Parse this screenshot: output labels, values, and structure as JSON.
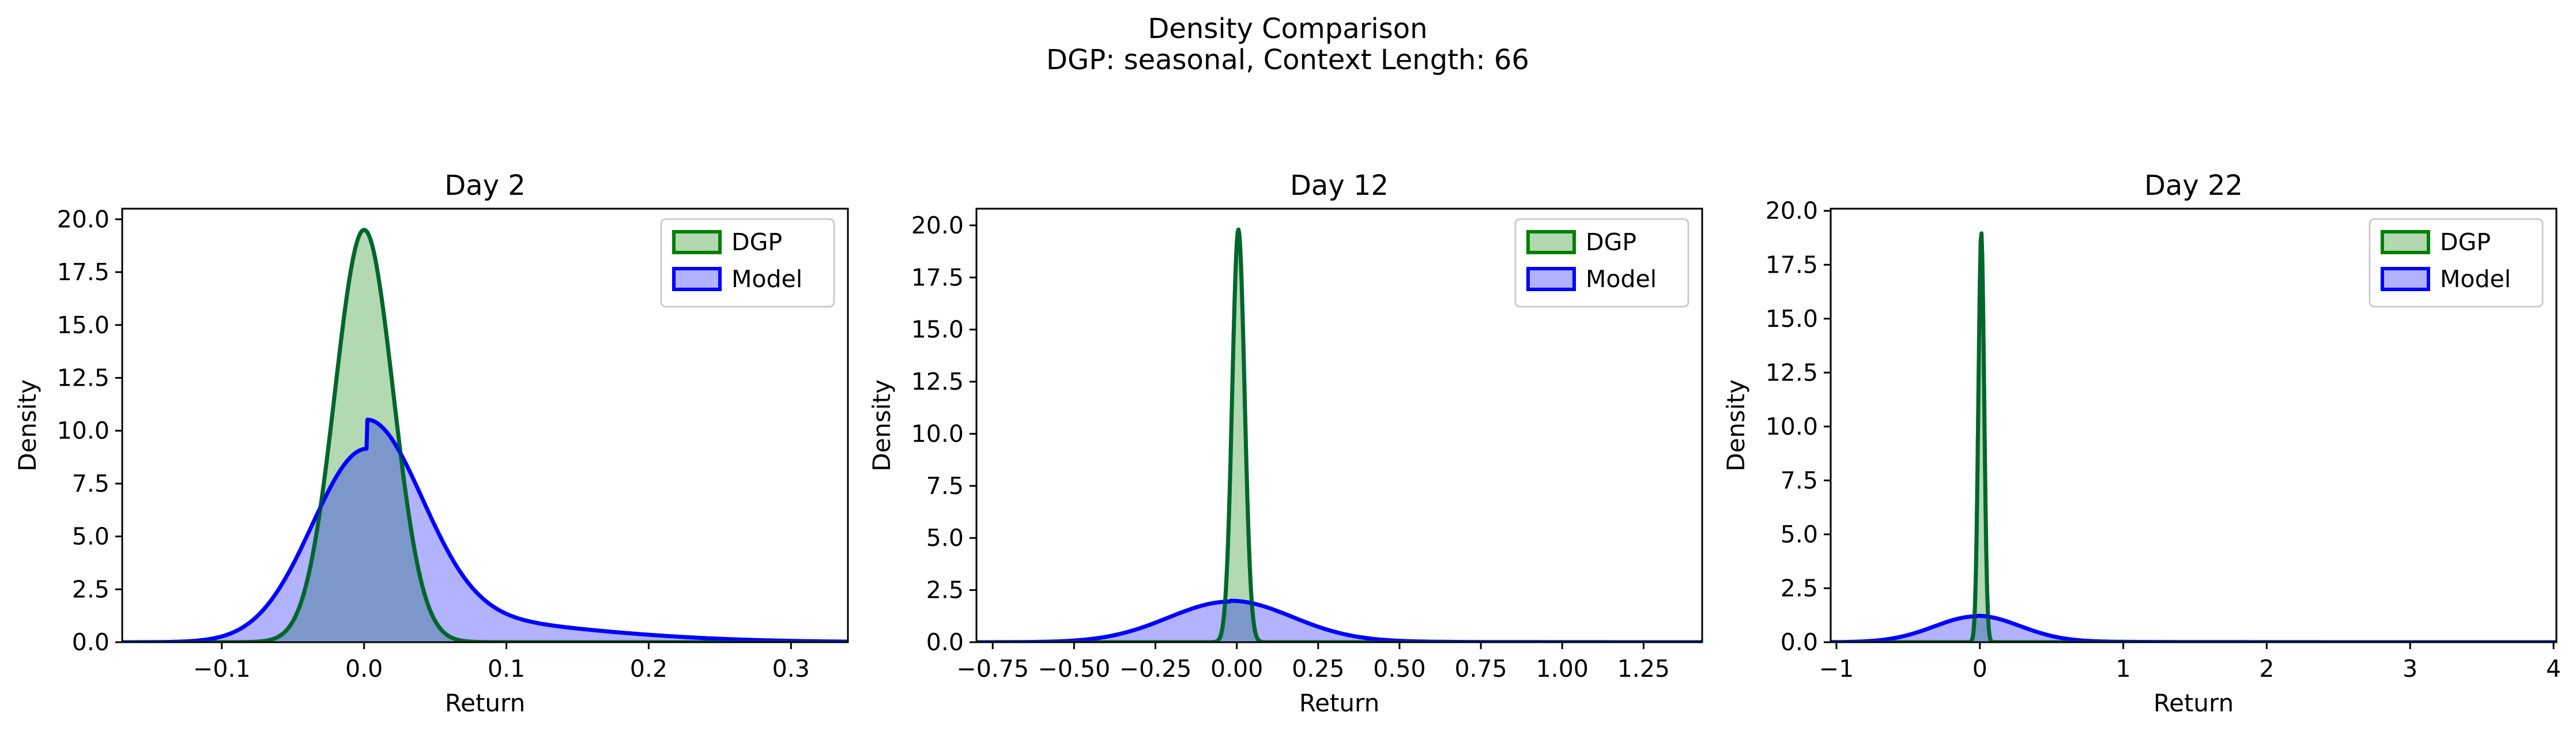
{
  "figure": {
    "title": "Density Comparison",
    "subtitle": "DGP: seasonal, Context Length: 66"
  },
  "colors": {
    "dgp_line": "#008000",
    "dgp_fill": "#b2d8b2",
    "model_line": "#0000ff",
    "model_fill": "#b2b2ff",
    "overlap_fill": "#7a96c8"
  },
  "chart_data": [
    {
      "type": "area",
      "title": "Day 2",
      "xlabel": "Return",
      "ylabel": "Density",
      "xlim": [
        -0.17,
        0.34
      ],
      "ylim": [
        0,
        20.5
      ],
      "xticks": [
        -0.1,
        0.0,
        0.1,
        0.2,
        0.3
      ],
      "xtick_labels": [
        "−0.1",
        "0.0",
        "0.1",
        "0.2",
        "0.3"
      ],
      "yticks": [
        0,
        2.5,
        5,
        7.5,
        10,
        12.5,
        15,
        17.5,
        20
      ],
      "ytick_labels": [
        "0.0",
        "2.5",
        "5.0",
        "7.5",
        "10.0",
        "12.5",
        "15.0",
        "17.5",
        "20.0"
      ],
      "legend": "top-right",
      "series": [
        {
          "name": "DGP",
          "kind": "gaussian",
          "mean": 0.0,
          "peak": 19.5,
          "sd": 0.0205,
          "tail_weight": 0,
          "tail_sd": 0
        },
        {
          "name": "Model",
          "kind": "gaussian",
          "mean": 0.002,
          "peak": 9.15,
          "sd": 0.0385,
          "tail_weight": 0.15,
          "tail_sd": 0.12
        }
      ]
    },
    {
      "type": "area",
      "title": "Day 12",
      "xlabel": "Return",
      "ylabel": "Density",
      "xlim": [
        -0.8,
        1.43
      ],
      "ylim": [
        0,
        20.8
      ],
      "xticks": [
        -0.75,
        -0.5,
        -0.25,
        0.0,
        0.25,
        0.5,
        0.75,
        1.0,
        1.25
      ],
      "xtick_labels": [
        "−0.75",
        "−0.50",
        "−0.25",
        "0.00",
        "0.25",
        "0.50",
        "0.75",
        "1.00",
        "1.25"
      ],
      "yticks": [
        0,
        2.5,
        5,
        7.5,
        10,
        12.5,
        15,
        17.5,
        20
      ],
      "ytick_labels": [
        "0.0",
        "2.5",
        "5.0",
        "7.5",
        "10.0",
        "12.5",
        "15.0",
        "17.5",
        "20.0"
      ],
      "legend": "top-right",
      "series": [
        {
          "name": "DGP",
          "kind": "gaussian",
          "mean": 0.005,
          "peak": 19.8,
          "sd": 0.019,
          "tail_weight": 0,
          "tail_sd": 0
        },
        {
          "name": "Model",
          "kind": "gaussian",
          "mean": -0.02,
          "peak": 1.95,
          "sd": 0.19,
          "tail_weight": 0.02,
          "tail_sd": 0.45
        }
      ]
    },
    {
      "type": "area",
      "title": "Day 22",
      "xlabel": "Return",
      "ylabel": "Density",
      "xlim": [
        -1.04,
        4.02
      ],
      "ylim": [
        0,
        20.1
      ],
      "xticks": [
        -1,
        0,
        1,
        2,
        3,
        4
      ],
      "xtick_labels": [
        "−1",
        "0",
        "1",
        "2",
        "3",
        "4"
      ],
      "yticks": [
        0,
        2.5,
        5,
        7.5,
        10,
        12.5,
        15,
        17.5,
        20
      ],
      "ytick_labels": [
        "0.0",
        "2.5",
        "5.0",
        "7.5",
        "10.0",
        "12.5",
        "15.0",
        "17.5",
        "20.0"
      ],
      "legend": "top-right",
      "series": [
        {
          "name": "DGP",
          "kind": "gaussian",
          "mean": 0.01,
          "peak": 19.0,
          "sd": 0.02,
          "tail_weight": 0,
          "tail_sd": 0
        },
        {
          "name": "Model",
          "kind": "gaussian",
          "mean": -0.02,
          "peak": 1.2,
          "sd": 0.3,
          "tail_weight": 0.02,
          "tail_sd": 1.0
        }
      ]
    }
  ]
}
